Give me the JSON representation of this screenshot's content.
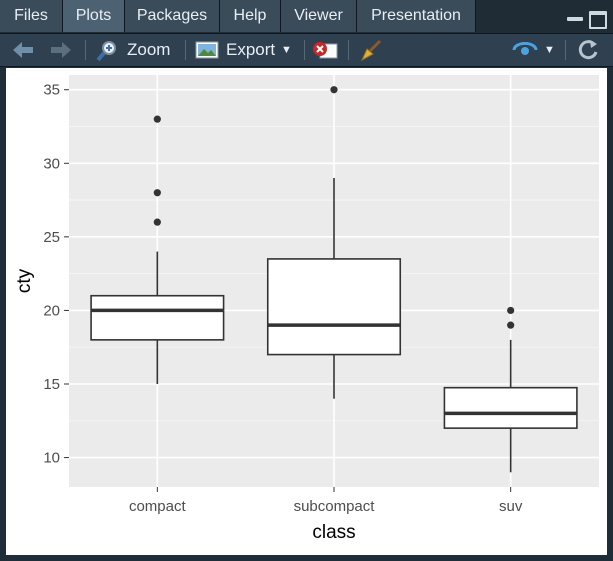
{
  "tabs": [
    {
      "label": "Files",
      "active": false
    },
    {
      "label": "Plots",
      "active": true
    },
    {
      "label": "Packages",
      "active": false
    },
    {
      "label": "Help",
      "active": false
    },
    {
      "label": "Viewer",
      "active": false
    },
    {
      "label": "Presentation",
      "active": false
    }
  ],
  "toolbar": {
    "zoom_label": "Zoom",
    "export_label": "Export",
    "icons": [
      "back-arrow-icon",
      "forward-arrow-icon",
      "zoom-icon",
      "export-icon",
      "remove-plot-icon",
      "clear-broom-icon",
      "publish-icon",
      "refresh-icon"
    ]
  },
  "chart_data": {
    "type": "boxplot",
    "xlabel": "class",
    "ylabel": "cty",
    "ylim": [
      8,
      36
    ],
    "yticks": [
      10,
      15,
      20,
      25,
      30,
      35
    ],
    "categories": [
      "compact",
      "subcompact",
      "suv"
    ],
    "boxes": [
      {
        "category": "compact",
        "q1": 18,
        "median": 20,
        "q3": 21,
        "whisker_low": 15,
        "whisker_high": 24,
        "outliers": [
          26,
          28,
          33
        ]
      },
      {
        "category": "subcompact",
        "q1": 17,
        "median": 19,
        "q3": 23.5,
        "whisker_low": 14,
        "whisker_high": 29,
        "outliers": [
          35
        ]
      },
      {
        "category": "suv",
        "q1": 12,
        "median": 13,
        "q3": 14.75,
        "whisker_low": 9,
        "whisker_high": 18,
        "outliers": [
          19,
          20
        ]
      }
    ],
    "panel_background": "#ebebeb",
    "grid": true
  }
}
